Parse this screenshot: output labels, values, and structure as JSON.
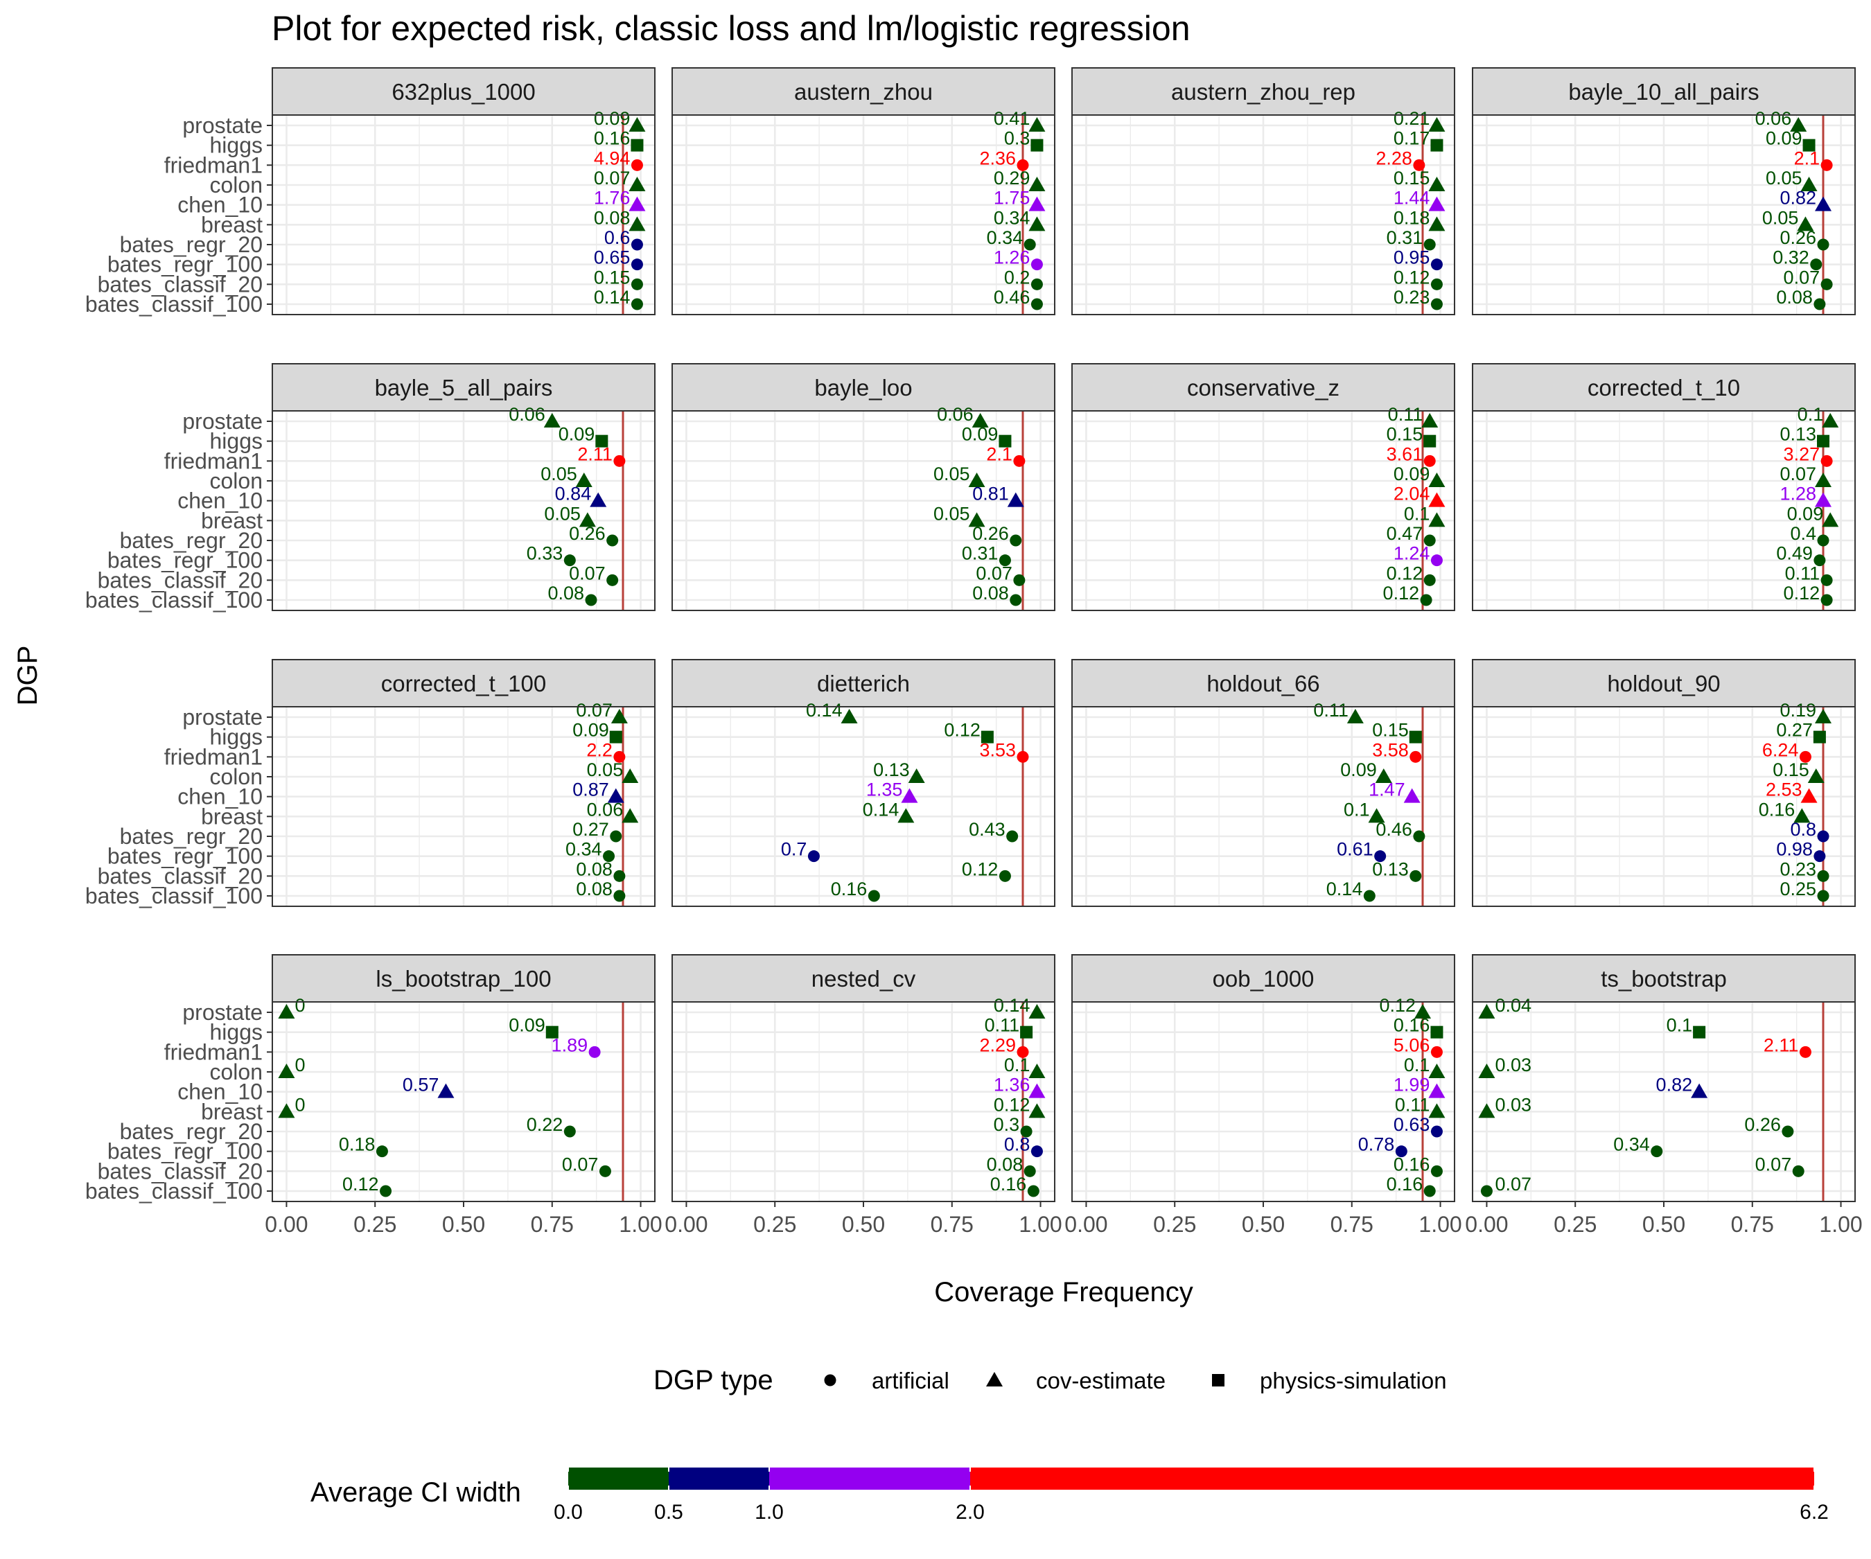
{
  "chart_data": {
    "type": "scatter",
    "title": "Plot for expected risk, classic loss and lm/logistic regression",
    "xlabel": "Coverage Frequency",
    "ylabel": "DGP",
    "xlim": [
      -0.04,
      1.04
    ],
    "x_ticks": [
      0,
      0.25,
      0.5,
      0.75,
      1
    ],
    "x_tick_labels": [
      "0.00",
      "0.25",
      "0.50",
      "0.75",
      "1.00"
    ],
    "reference_line": 0.95,
    "grid": true,
    "categories": [
      "prostate",
      "higgs",
      "friedman1",
      "colon",
      "chen_10",
      "breast",
      "bates_regr_20",
      "bates_regr_100",
      "bates_classif_20",
      "bates_classif_100"
    ],
    "dgp_type": [
      "cov-estimate",
      "physics-simulation",
      "artificial",
      "cov-estimate",
      "cov-estimate",
      "cov-estimate",
      "artificial",
      "artificial",
      "artificial",
      "artificial"
    ],
    "panels": [
      {
        "name": "632plus_1000",
        "coverage": [
          0.99,
          0.99,
          0.99,
          0.99,
          0.99,
          0.99,
          0.99,
          0.99,
          0.99,
          0.99
        ],
        "width": [
          "0.09",
          "0.16",
          "4.94",
          "0.07",
          "1.76",
          "0.08",
          "0.6",
          "0.65",
          "0.15",
          "0.14"
        ]
      },
      {
        "name": "austern_zhou",
        "coverage": [
          0.99,
          0.99,
          0.95,
          0.99,
          0.99,
          0.99,
          0.97,
          0.99,
          0.99,
          0.99
        ],
        "width": [
          "0.41",
          "0.3",
          "2.36",
          "0.29",
          "1.75",
          "0.34",
          "0.34",
          "1.26",
          "0.2",
          "0.46"
        ]
      },
      {
        "name": "austern_zhou_rep",
        "coverage": [
          0.99,
          0.99,
          0.94,
          0.99,
          0.99,
          0.99,
          0.97,
          0.99,
          0.99,
          0.99
        ],
        "width": [
          "0.21",
          "0.17",
          "2.28",
          "0.15",
          "1.44",
          "0.18",
          "0.31",
          "0.95",
          "0.12",
          "0.23"
        ]
      },
      {
        "name": "bayle_10_all_pairs",
        "coverage": [
          0.88,
          0.91,
          0.96,
          0.91,
          0.95,
          0.9,
          0.95,
          0.93,
          0.96,
          0.94
        ],
        "width": [
          "0.06",
          "0.09",
          "2.1",
          "0.05",
          "0.82",
          "0.05",
          "0.26",
          "0.32",
          "0.07",
          "0.08"
        ]
      },
      {
        "name": "bayle_5_all_pairs",
        "coverage": [
          0.75,
          0.89,
          0.94,
          0.84,
          0.88,
          0.85,
          0.92,
          0.8,
          0.92,
          0.86
        ],
        "width": [
          "0.06",
          "0.09",
          "2.11",
          "0.05",
          "0.84",
          "0.05",
          "0.26",
          "0.33",
          "0.07",
          "0.08"
        ]
      },
      {
        "name": "bayle_loo",
        "coverage": [
          0.83,
          0.9,
          0.94,
          0.82,
          0.93,
          0.82,
          0.93,
          0.9,
          0.94,
          0.93
        ],
        "width": [
          "0.06",
          "0.09",
          "2.1",
          "0.05",
          "0.81",
          "0.05",
          "0.26",
          "0.31",
          "0.07",
          "0.08"
        ]
      },
      {
        "name": "conservative_z",
        "coverage": [
          0.97,
          0.97,
          0.97,
          0.99,
          0.99,
          0.99,
          0.97,
          0.99,
          0.97,
          0.96
        ],
        "width": [
          "0.11",
          "0.15",
          "3.61",
          "0.09",
          "2.04",
          "0.1",
          "0.47",
          "1.24",
          "0.12",
          "0.12"
        ]
      },
      {
        "name": "corrected_t_10",
        "coverage": [
          0.97,
          0.95,
          0.96,
          0.95,
          0.95,
          0.97,
          0.95,
          0.94,
          0.96,
          0.96
        ],
        "width": [
          "0.1",
          "0.13",
          "3.27",
          "0.07",
          "1.28",
          "0.09",
          "0.4",
          "0.49",
          "0.11",
          "0.12"
        ]
      },
      {
        "name": "corrected_t_100",
        "coverage": [
          0.94,
          0.93,
          0.94,
          0.97,
          0.93,
          0.97,
          0.93,
          0.91,
          0.94,
          0.94
        ],
        "width": [
          "0.07",
          "0.09",
          "2.2",
          "0.05",
          "0.87",
          "0.06",
          "0.27",
          "0.34",
          "0.08",
          "0.08"
        ]
      },
      {
        "name": "dietterich",
        "coverage": [
          0.46,
          0.85,
          0.95,
          0.65,
          0.63,
          0.62,
          0.92,
          0.36,
          0.9,
          0.53
        ],
        "width": [
          "0.14",
          "0.12",
          "3.53",
          "0.13",
          "1.35",
          "0.14",
          "0.43",
          "0.7",
          "0.12",
          "0.16"
        ]
      },
      {
        "name": "holdout_66",
        "coverage": [
          0.76,
          0.93,
          0.93,
          0.84,
          0.92,
          0.82,
          0.94,
          0.83,
          0.93,
          0.8
        ],
        "width": [
          "0.11",
          "0.15",
          "3.58",
          "0.09",
          "1.47",
          "0.1",
          "0.46",
          "0.61",
          "0.13",
          "0.14"
        ]
      },
      {
        "name": "holdout_90",
        "coverage": [
          0.95,
          0.94,
          0.9,
          0.93,
          0.91,
          0.89,
          0.95,
          0.94,
          0.95,
          0.95
        ],
        "width": [
          "0.19",
          "0.27",
          "6.24",
          "0.15",
          "2.53",
          "0.16",
          "0.8",
          "0.98",
          "0.23",
          "0.25"
        ]
      },
      {
        "name": "ls_bootstrap_100",
        "coverage": [
          0.0,
          0.75,
          0.87,
          0.0,
          0.45,
          0.0,
          0.8,
          0.27,
          0.9,
          0.28
        ],
        "width": [
          "0",
          "0.09",
          "1.89",
          "0",
          "0.57",
          "0",
          "0.22",
          "0.18",
          "0.07",
          "0.12"
        ]
      },
      {
        "name": "nested_cv",
        "coverage": [
          0.99,
          0.96,
          0.95,
          0.99,
          0.99,
          0.99,
          0.96,
          0.99,
          0.97,
          0.98
        ],
        "width": [
          "0.14",
          "0.11",
          "2.29",
          "0.1",
          "1.36",
          "0.12",
          "0.3",
          "0.8",
          "0.08",
          "0.16"
        ]
      },
      {
        "name": "oob_1000",
        "coverage": [
          0.95,
          0.99,
          0.99,
          0.99,
          0.99,
          0.99,
          0.99,
          0.89,
          0.99,
          0.97
        ],
        "width": [
          "0.12",
          "0.16",
          "5.06",
          "0.1",
          "1.99",
          "0.11",
          "0.63",
          "0.78",
          "0.16",
          "0.16"
        ]
      },
      {
        "name": "ts_bootstrap",
        "coverage": [
          0.0,
          0.6,
          0.9,
          0.0,
          0.6,
          0.0,
          0.85,
          0.48,
          0.88,
          0.0
        ],
        "width": [
          "0.04",
          "0.1",
          "2.11",
          "0.03",
          "0.82",
          "0.03",
          "0.26",
          "0.34",
          "0.07",
          "0.07"
        ]
      }
    ],
    "legend_shape": {
      "title": "DGP type",
      "items": [
        {
          "label": "artificial",
          "shape": "circle"
        },
        {
          "label": "cov-estimate",
          "shape": "triangle"
        },
        {
          "label": "physics-simulation",
          "shape": "square"
        }
      ]
    },
    "legend_color": {
      "title": "Average CI width",
      "bins": [
        {
          "from": 0.0,
          "to": 0.5,
          "color": "#005000"
        },
        {
          "from": 0.5,
          "to": 1.0,
          "color": "#000080"
        },
        {
          "from": 1.0,
          "to": 2.0,
          "color": "#9400f0"
        },
        {
          "from": 2.0,
          "to": 6.2,
          "color": "#ff0000"
        }
      ],
      "tick_labels": [
        "0.0",
        "0.5",
        "1.0",
        "2.0",
        "6.2"
      ],
      "range": [
        0,
        6.2
      ]
    },
    "colors": {
      "strip_bg": "#d9d9d9",
      "grid": "#ebebeb",
      "reference_line": "#b8403a"
    }
  }
}
